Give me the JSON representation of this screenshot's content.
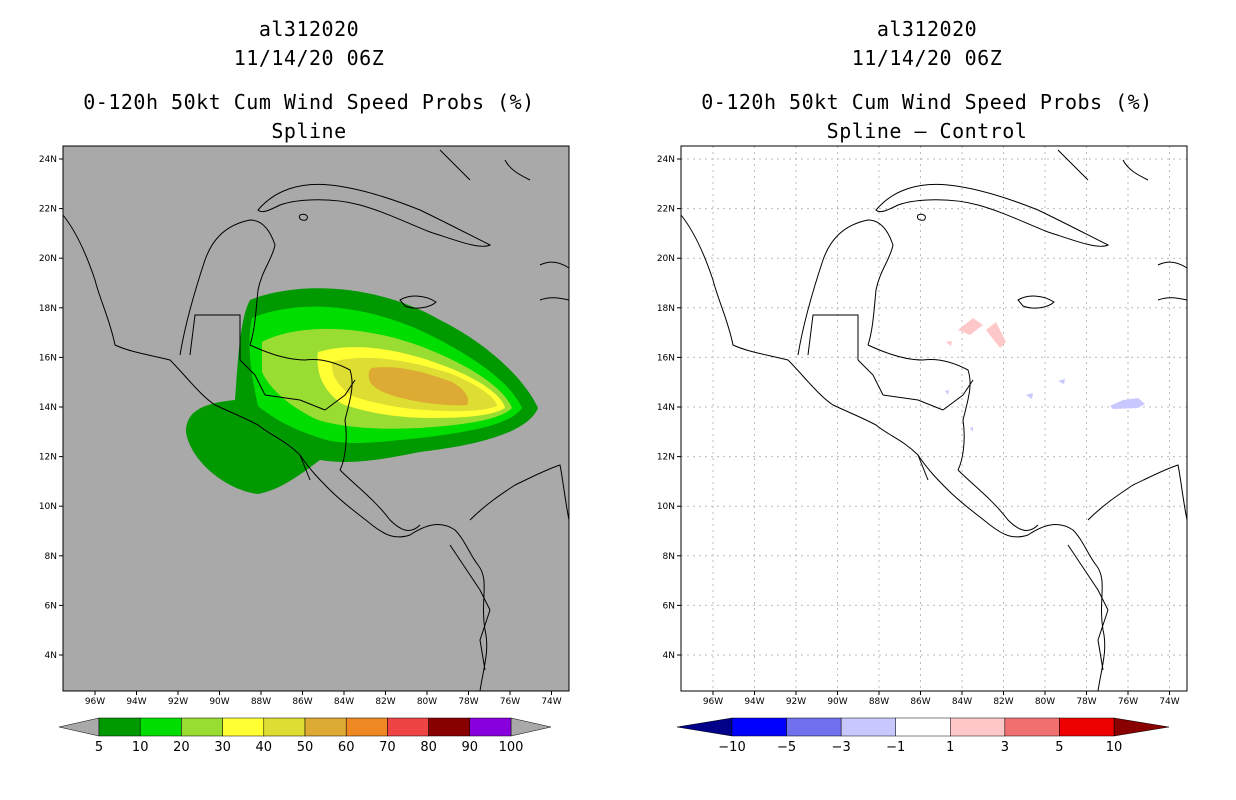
{
  "left": {
    "storm_id": "al312020",
    "datetime": "11/14/20 06Z",
    "product": "0-120h 50kt Cum Wind Speed Probs (%)",
    "subtitle": "Spline",
    "background_color": "#a9a9a9",
    "colorbar": {
      "colors": [
        "#009900",
        "#00dd00",
        "#99dd33",
        "#ffff33",
        "#dddd33",
        "#ddaa33",
        "#ee8822",
        "#ee4444",
        "#880000",
        "#8800dd"
      ],
      "end_arrow_color": "#a9a9a9",
      "labels": [
        "5",
        "10",
        "20",
        "30",
        "40",
        "50",
        "60",
        "70",
        "80",
        "90",
        "100"
      ]
    }
  },
  "right": {
    "storm_id": "al312020",
    "datetime": "11/14/20 06Z",
    "product": "0-120h 50kt Cum Wind Speed Probs (%)",
    "subtitle": "Spline – Control",
    "background_color": "#ffffff",
    "colorbar": {
      "colors": [
        "#0000ff",
        "#7070ee",
        "#c8c8ff",
        "#ffffff",
        "#ffc8c8",
        "#f07070",
        "#ee0000"
      ],
      "left_arrow_color": "#000088",
      "right_arrow_color": "#880000",
      "labels": [
        "-10",
        "-5",
        "-3",
        "-1",
        "1",
        "3",
        "5",
        "10"
      ]
    }
  },
  "map": {
    "lat_labels": [
      "24N",
      "22N",
      "20N",
      "18N",
      "16N",
      "14N",
      "12N",
      "10N",
      "8N",
      "6N",
      "4N"
    ],
    "lon_labels": [
      "96W",
      "94W",
      "92W",
      "90W",
      "88W",
      "86W",
      "84W",
      "82W",
      "80W",
      "78W",
      "76W",
      "74W"
    ]
  }
}
